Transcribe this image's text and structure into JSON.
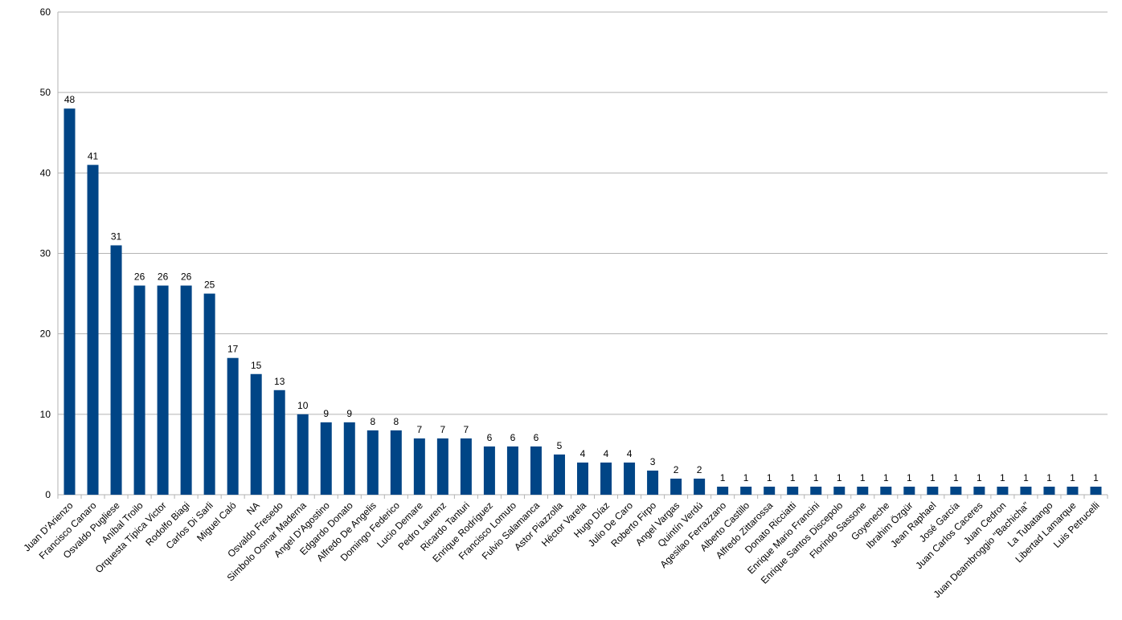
{
  "chart_data": {
    "type": "bar",
    "categories": [
      "Juan D'Arienzo",
      "Francisco Canaro",
      "Osvaldo Pugliese",
      "Aníbal Troilo",
      "Orquesta Típica Victor",
      "Rodolfo Biagi",
      "Carlos Di Sarli",
      "Miguel Caló",
      "NA",
      "Osvaldo Fresedo",
      "Simbolo Osmar Maderna",
      "Angel D'Agostino",
      "Edgardo Donato",
      "Alfredo De Angelis",
      "Domingo Federico",
      "Lucio Demare",
      "Pedro Laurenz",
      "Ricardo Tanturi",
      "Enrique Rodríguez",
      "Francisco Lomuto",
      "Fulvio Salamanca",
      "Astor Piazzolla",
      "Héctor Varela",
      "Hugo Díaz",
      "Julio De Caro",
      "Roberto Firpo",
      "Angel Vargas",
      "Quintín Verdú",
      "Agesilao Ferrazzano",
      "Alberto Castillo",
      "Alfredo Zittarossa",
      "Donato Ricciatti",
      "Enrique Mario Francini",
      "Enrique Santos Discepolo",
      "Florindo Sassone",
      "Goyeneche",
      "Ibrahim Özgür",
      "Jean Raphael",
      "José García",
      "Juan Carlos Caceres",
      "Juan Cedron",
      "Juan Deambroggio \"Bachicha\"",
      "La Tubatango",
      "Libertad Lamarque",
      "Luis Petrucelli"
    ],
    "values": [
      48,
      41,
      31,
      26,
      26,
      26,
      25,
      17,
      15,
      13,
      10,
      9,
      9,
      8,
      8,
      7,
      7,
      7,
      6,
      6,
      6,
      5,
      4,
      4,
      4,
      3,
      2,
      2,
      1,
      1,
      1,
      1,
      1,
      1,
      1,
      1,
      1,
      1,
      1,
      1,
      1,
      1,
      1,
      1,
      1
    ],
    "color": "#004586",
    "ylim": [
      0,
      60
    ],
    "yticks": [
      0,
      10,
      20,
      30,
      40,
      50,
      60
    ],
    "grid": true
  }
}
